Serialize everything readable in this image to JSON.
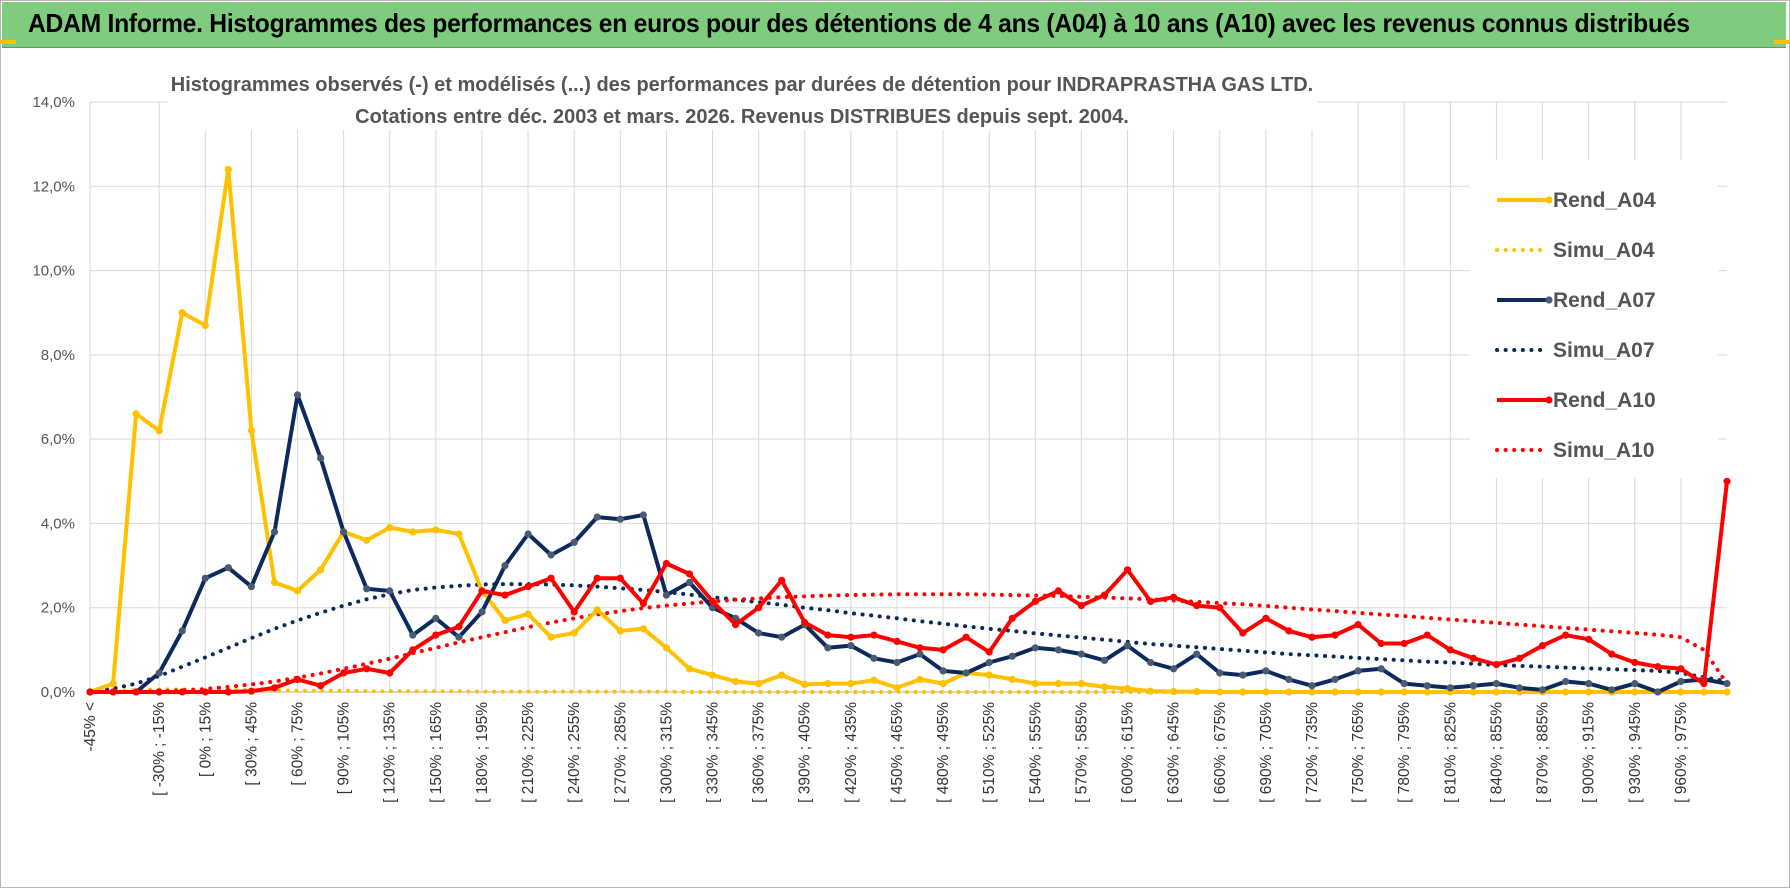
{
  "header": {
    "title": "ADAM Informe. Histogrammes des performances en euros pour des détentions de 4 ans (A04) à 10 ans (A10) avec les revenus connus distribués"
  },
  "colors": {
    "banner": "#7fcc7f",
    "a04": "#ffc000",
    "a07": "#0d2a5c",
    "a10": "#ff0000",
    "grid": "#d9d9d9"
  },
  "chart_data": {
    "type": "line",
    "title": "Histogrammes observés (-) et modélisés (...) des performances par durées de détention pour INDRAPRASTHA GAS LTD.",
    "subtitle": "Cotations entre déc. 2003 et mars. 2026. Revenus DISTRIBUES depuis sept. 2004.",
    "xlabel": "",
    "ylabel": "",
    "ylim": [
      0,
      14
    ],
    "yticks": [
      "0,0%",
      "2,0%",
      "4,0%",
      "6,0%",
      "8,0%",
      "10,0%",
      "12,0%",
      "14,0%"
    ],
    "grid": true,
    "legend_position": "right",
    "x_tick_labels": [
      "-45% <",
      "[ -30% ; -15%",
      "[ 0% ; 15%",
      "[ 30% ; 45%",
      "[ 60% ; 75%",
      "[ 90% ; 105%",
      "[ 120% ; 135%",
      "[ 150% ; 165%",
      "[ 180% ; 195%",
      "[ 210% ; 225%",
      "[ 240% ; 255%",
      "[ 270% ; 285%",
      "[ 300% ; 315%",
      "[ 330% ; 345%",
      "[ 360% ; 375%",
      "[ 390% ; 405%",
      "[ 420% ; 435%",
      "[ 450% ; 465%",
      "[ 480% ; 495%",
      "[ 510% ; 525%",
      "[ 540% ; 555%",
      "[ 570% ; 585%",
      "[ 600% ; 615%",
      "[ 630% ; 645%",
      "[ 660% ; 675%",
      "[ 690% ; 705%",
      "[ 720% ; 735%",
      "[ 750% ; 765%",
      "[ 780% ; 795%",
      "[ 810% ; 825%",
      "[ 840% ; 855%",
      "[ 870% ; 885%",
      "[ 900% ; 915%",
      "[ 930% ; 945%",
      "[ 960% ; 975%"
    ],
    "n_categories": 72,
    "series": [
      {
        "name": "Rend_A04",
        "style": "solid",
        "color": "#ffc000",
        "values": [
          0.0,
          0.2,
          6.6,
          6.2,
          9.0,
          8.7,
          12.4,
          6.2,
          2.6,
          2.4,
          2.9,
          3.8,
          3.6,
          3.9,
          3.8,
          3.85,
          3.75,
          2.4,
          1.7,
          1.85,
          1.3,
          1.4,
          1.95,
          1.45,
          1.5,
          1.05,
          0.55,
          0.4,
          0.25,
          0.2,
          0.4,
          0.18,
          0.2,
          0.2,
          0.28,
          0.1,
          0.3,
          0.2,
          0.45,
          0.4,
          0.3,
          0.2,
          0.2,
          0.2,
          0.12,
          0.08,
          0.02,
          0.01,
          0.01,
          0.0,
          0.0,
          0.0,
          0.0,
          0.0,
          0.0,
          0.0,
          0.0,
          0.0,
          0.0,
          0.0,
          0.0,
          0.0,
          0.0,
          0.0,
          0.0,
          0.0,
          0.0,
          0.0,
          0.0,
          0.0,
          0.0,
          0.0
        ]
      },
      {
        "name": "Simu_A04",
        "style": "dotted",
        "color": "#ffc000",
        "values": [
          0.0,
          0.02,
          0.05,
          0.06,
          0.06,
          0.05,
          0.05,
          0.04,
          0.04,
          0.03,
          0.03,
          0.03,
          0.02,
          0.02,
          0.02,
          0.02,
          0.02,
          0.01,
          0.01,
          0.01,
          0.01,
          0.01,
          0.01,
          0.01,
          0.01,
          0.01,
          0.0,
          0.0,
          0.0,
          0.0,
          0.0,
          0.0,
          0.0,
          0.0,
          0.0,
          0.0,
          0.0,
          0.0,
          0.0,
          0.0,
          0.0,
          0.0,
          0.0,
          0.0,
          0.0,
          0.0,
          0.0,
          0.0,
          0.0,
          0.0,
          0.0,
          0.0,
          0.0,
          0.0,
          0.0,
          0.0,
          0.0,
          0.0,
          0.0,
          0.0,
          0.0,
          0.0,
          0.0,
          0.0,
          0.0,
          0.0,
          0.0,
          0.0,
          0.0,
          0.0,
          0.0,
          0.0
        ]
      },
      {
        "name": "Rend_A07",
        "style": "solid",
        "color": "#0d2a5c",
        "values": [
          0.0,
          0.0,
          0.0,
          0.45,
          1.45,
          2.7,
          2.95,
          2.5,
          3.8,
          7.05,
          5.55,
          3.8,
          2.45,
          2.4,
          1.35,
          1.75,
          1.3,
          1.9,
          3.0,
          3.75,
          3.25,
          3.55,
          4.15,
          4.1,
          4.2,
          2.3,
          2.6,
          2.0,
          1.75,
          1.4,
          1.3,
          1.6,
          1.05,
          1.1,
          0.8,
          0.7,
          0.9,
          0.5,
          0.45,
          0.7,
          0.85,
          1.05,
          1.0,
          0.9,
          0.75,
          1.1,
          0.7,
          0.55,
          0.9,
          0.45,
          0.4,
          0.5,
          0.3,
          0.15,
          0.3,
          0.5,
          0.55,
          0.2,
          0.15,
          0.1,
          0.15,
          0.2,
          0.1,
          0.05,
          0.25,
          0.2,
          0.05,
          0.2,
          0.0,
          0.25,
          0.3,
          0.2
        ]
      },
      {
        "name": "Simu_A07",
        "style": "dotted",
        "color": "#0d2a5c",
        "values": [
          0.0,
          0.08,
          0.2,
          0.38,
          0.6,
          0.82,
          1.05,
          1.28,
          1.5,
          1.7,
          1.88,
          2.05,
          2.2,
          2.32,
          2.42,
          2.48,
          2.52,
          2.55,
          2.56,
          2.56,
          2.55,
          2.53,
          2.5,
          2.46,
          2.42,
          2.37,
          2.31,
          2.25,
          2.19,
          2.13,
          2.07,
          2.0,
          1.94,
          1.87,
          1.81,
          1.75,
          1.68,
          1.62,
          1.56,
          1.5,
          1.45,
          1.39,
          1.34,
          1.29,
          1.24,
          1.19,
          1.14,
          1.1,
          1.06,
          1.02,
          0.98,
          0.94,
          0.9,
          0.87,
          0.84,
          0.81,
          0.78,
          0.75,
          0.72,
          0.7,
          0.67,
          0.64,
          0.62,
          0.6,
          0.58,
          0.56,
          0.54,
          0.52,
          0.5,
          0.45,
          0.35,
          0.25
        ]
      },
      {
        "name": "Rend_A10",
        "style": "solid",
        "color": "#ff0000",
        "values": [
          0.0,
          0.0,
          0.0,
          0.0,
          0.0,
          0.0,
          0.0,
          0.02,
          0.1,
          0.3,
          0.15,
          0.45,
          0.55,
          0.45,
          1.0,
          1.35,
          1.55,
          2.4,
          2.3,
          2.5,
          2.7,
          1.9,
          2.7,
          2.7,
          2.1,
          3.05,
          2.8,
          2.15,
          1.6,
          2.0,
          2.65,
          1.65,
          1.35,
          1.3,
          1.35,
          1.2,
          1.05,
          1.0,
          1.3,
          0.95,
          1.75,
          2.15,
          2.4,
          2.05,
          2.3,
          2.9,
          2.15,
          2.25,
          2.05,
          2.0,
          1.4,
          1.75,
          1.45,
          1.3,
          1.35,
          1.6,
          1.15,
          1.15,
          1.35,
          1.0,
          0.8,
          0.65,
          0.8,
          1.1,
          1.35,
          1.25,
          0.9,
          0.7,
          0.6,
          0.55,
          0.2,
          5.0
        ]
      },
      {
        "name": "Simu_A10",
        "style": "dotted",
        "color": "#ff0000",
        "values": [
          0.0,
          0.0,
          0.0,
          0.02,
          0.04,
          0.07,
          0.12,
          0.18,
          0.25,
          0.34,
          0.44,
          0.55,
          0.67,
          0.79,
          0.92,
          1.05,
          1.18,
          1.3,
          1.42,
          1.54,
          1.65,
          1.75,
          1.84,
          1.92,
          1.99,
          2.05,
          2.1,
          2.15,
          2.19,
          2.22,
          2.25,
          2.27,
          2.29,
          2.3,
          2.31,
          2.32,
          2.32,
          2.32,
          2.32,
          2.31,
          2.3,
          2.29,
          2.28,
          2.26,
          2.24,
          2.22,
          2.2,
          2.17,
          2.14,
          2.11,
          2.08,
          2.04,
          2.0,
          1.96,
          1.92,
          1.88,
          1.84,
          1.8,
          1.76,
          1.72,
          1.68,
          1.64,
          1.6,
          1.56,
          1.52,
          1.48,
          1.44,
          1.4,
          1.36,
          1.3,
          1.0,
          0.2
        ]
      }
    ]
  }
}
